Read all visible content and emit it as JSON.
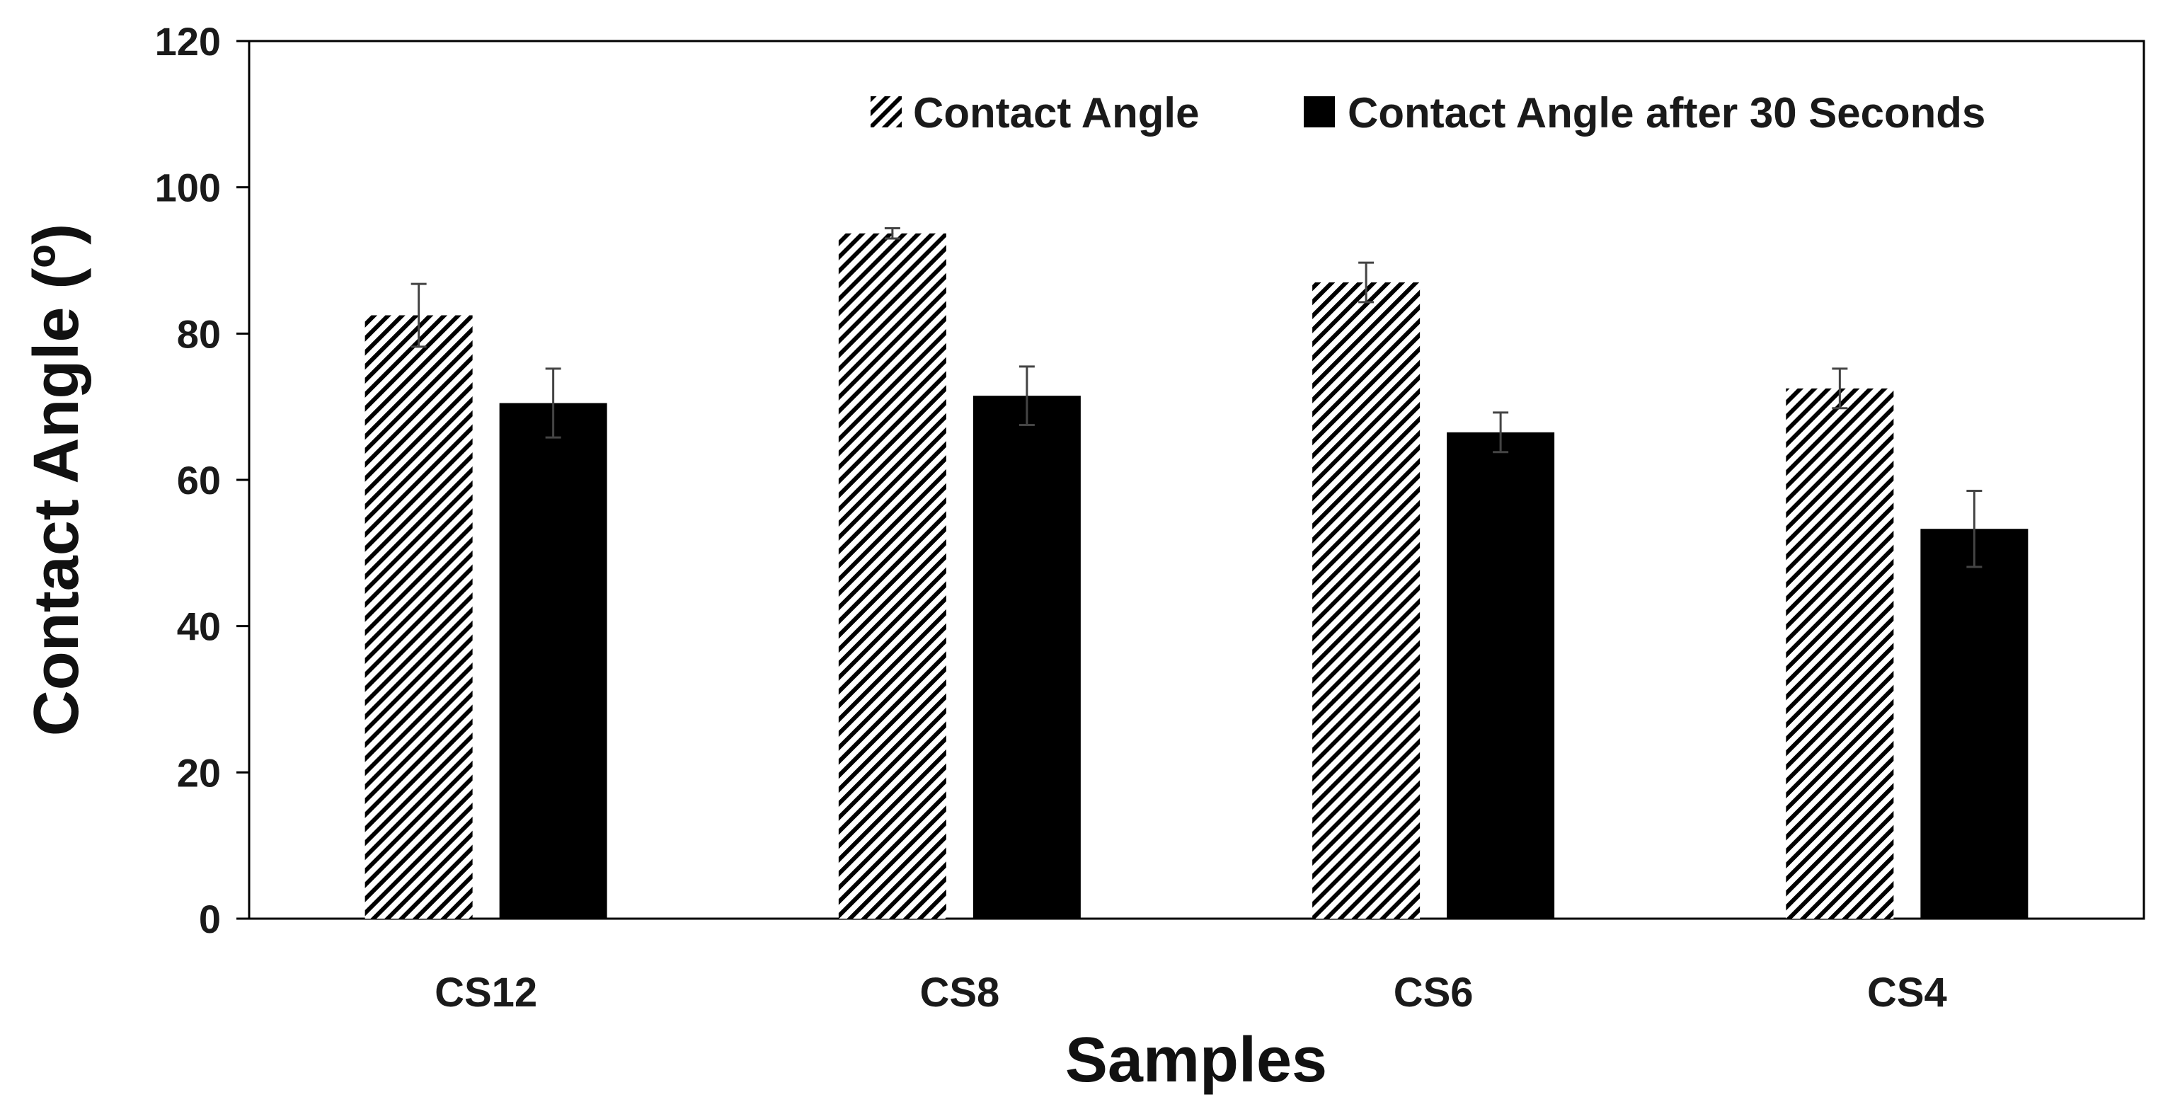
{
  "chart_data": {
    "type": "bar",
    "title": "",
    "xlabel": "Samples",
    "ylabel": "Contact Angle (º)",
    "categories": [
      "CS12",
      "CS8",
      "CS6",
      "CS4"
    ],
    "ylim": [
      0,
      120
    ],
    "yticks": [
      0,
      20,
      40,
      60,
      80,
      100,
      120
    ],
    "grid": false,
    "legend_position": "top-right",
    "series": [
      {
        "name": "Contact Angle",
        "pattern": "diagonal-hatch",
        "color": "#000000",
        "values": [
          82.5,
          93.7,
          87.0,
          72.5
        ],
        "errors": [
          4.3,
          0.7,
          2.7,
          2.7
        ]
      },
      {
        "name": "Contact Angle after 30 Seconds",
        "pattern": "solid",
        "color": "#000000",
        "values": [
          70.5,
          71.5,
          66.5,
          53.3
        ],
        "errors": [
          4.7,
          4.0,
          2.7,
          5.2
        ]
      }
    ]
  }
}
